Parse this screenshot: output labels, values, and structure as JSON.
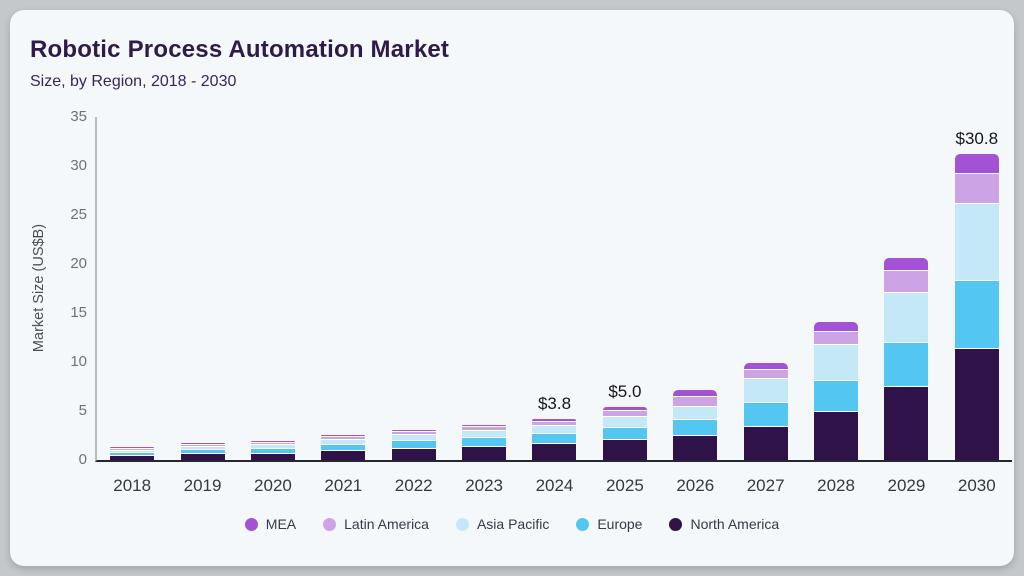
{
  "chart_data": {
    "type": "bar",
    "stacked": true,
    "title": "Robotic Process Automation Market",
    "subtitle": "Size, by Region, 2018 - 2030",
    "ylabel": "Market Size (US$B)",
    "xlabel": "",
    "ylim": [
      0,
      35
    ],
    "yticks": [
      0,
      5,
      10,
      15,
      20,
      25,
      30,
      35
    ],
    "grid": false,
    "legend_position": "bottom",
    "categories": [
      "2018",
      "2019",
      "2020",
      "2021",
      "2022",
      "2023",
      "2024",
      "2025",
      "2026",
      "2027",
      "2028",
      "2029",
      "2030"
    ],
    "series": [
      {
        "name": "MEA",
        "color": "#a352d6",
        "values": [
          0.04,
          0.05,
          0.06,
          0.1,
          0.13,
          0.15,
          0.25,
          0.35,
          0.55,
          0.6,
          0.95,
          1.2,
          1.9
        ]
      },
      {
        "name": "Latin America",
        "color": "#cca4e6",
        "values": [
          0.06,
          0.1,
          0.12,
          0.15,
          0.22,
          0.25,
          0.3,
          0.5,
          0.95,
          0.85,
          1.25,
          2.15,
          3.0
        ]
      },
      {
        "name": "Asia Pacific",
        "color": "#c4e8f8",
        "values": [
          0.12,
          0.25,
          0.32,
          0.45,
          0.55,
          0.65,
          0.65,
          0.95,
          1.2,
          2.3,
          3.5,
          5.05,
          7.7
        ]
      },
      {
        "name": "Europe",
        "color": "#54c6f2",
        "values": [
          0.18,
          0.3,
          0.35,
          0.5,
          0.65,
          0.8,
          1.0,
          1.15,
          1.5,
          2.35,
          3.05,
          4.4,
          6.9
        ]
      },
      {
        "name": "North America",
        "color": "#2f1248",
        "values": [
          0.45,
          0.6,
          0.65,
          0.9,
          1.15,
          1.35,
          1.6,
          2.05,
          2.5,
          3.4,
          4.95,
          7.4,
          11.3
        ]
      }
    ],
    "stack_order_bottom_to_top": [
      "North America",
      "Europe",
      "Asia Pacific",
      "Latin America",
      "MEA"
    ],
    "totals": [
      0.85,
      1.3,
      1.5,
      2.1,
      2.7,
      3.2,
      3.8,
      5.0,
      6.7,
      9.5,
      13.7,
      20.2,
      30.8
    ],
    "annotations": [
      "",
      "",
      "",
      "",
      "",
      "",
      "$3.8",
      "$5.0",
      "",
      "",
      "",
      "",
      "$30.8"
    ]
  }
}
